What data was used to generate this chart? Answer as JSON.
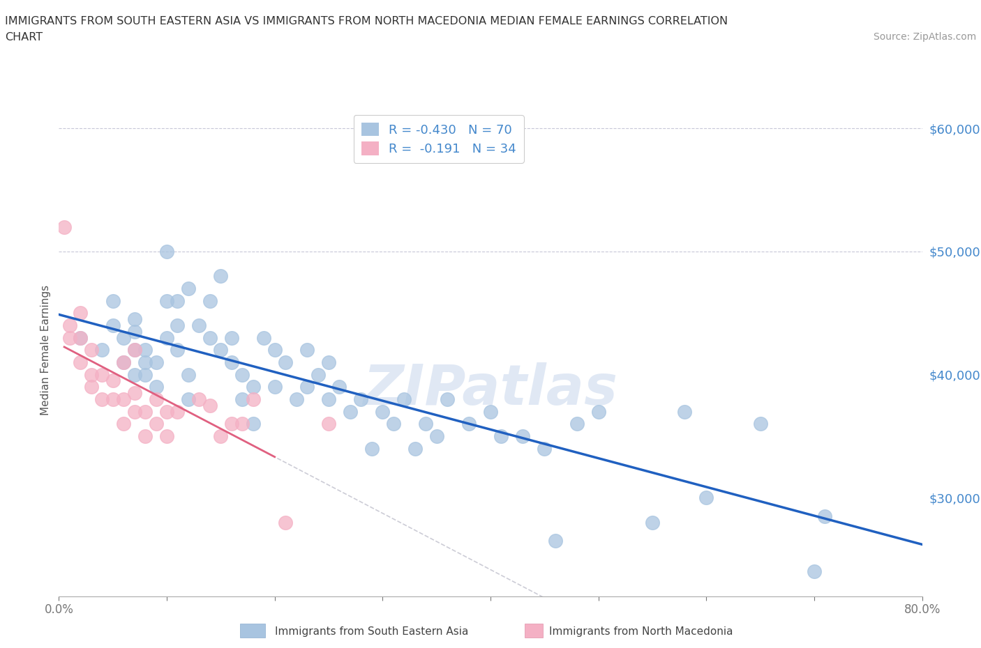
{
  "title_line1": "IMMIGRANTS FROM SOUTH EASTERN ASIA VS IMMIGRANTS FROM NORTH MACEDONIA MEDIAN FEMALE EARNINGS CORRELATION",
  "title_line2": "CHART",
  "source": "Source: ZipAtlas.com",
  "ylabel": "Median Female Earnings",
  "xlim": [
    0.0,
    0.8
  ],
  "ylim": [
    22000,
    62000
  ],
  "yticks": [
    30000,
    40000,
    50000,
    60000
  ],
  "ytick_labels": [
    "$30,000",
    "$40,000",
    "$50,000",
    "$60,000"
  ],
  "xticks": [
    0.0,
    0.1,
    0.2,
    0.3,
    0.4,
    0.5,
    0.6,
    0.7,
    0.8
  ],
  "xtick_labels": [
    "0.0%",
    "",
    "",
    "",
    "",
    "",
    "",
    "",
    "80.0%"
  ],
  "watermark": "ZIPatlas",
  "color_blue": "#a8c4e0",
  "color_pink": "#f4b0c4",
  "line_blue": "#2060c0",
  "line_pink": "#e06080",
  "line_gray": "#c0c0cc",
  "text_blue": "#4488cc",
  "background": "#ffffff",
  "blue_x": [
    0.02,
    0.04,
    0.05,
    0.05,
    0.06,
    0.06,
    0.07,
    0.07,
    0.07,
    0.07,
    0.08,
    0.08,
    0.08,
    0.09,
    0.09,
    0.1,
    0.1,
    0.1,
    0.11,
    0.11,
    0.11,
    0.12,
    0.12,
    0.12,
    0.13,
    0.14,
    0.14,
    0.15,
    0.15,
    0.16,
    0.16,
    0.17,
    0.17,
    0.18,
    0.18,
    0.19,
    0.2,
    0.2,
    0.21,
    0.22,
    0.23,
    0.23,
    0.24,
    0.25,
    0.25,
    0.26,
    0.27,
    0.28,
    0.29,
    0.3,
    0.31,
    0.32,
    0.33,
    0.34,
    0.35,
    0.36,
    0.38,
    0.4,
    0.41,
    0.43,
    0.45,
    0.46,
    0.48,
    0.5,
    0.55,
    0.58,
    0.6,
    0.65,
    0.7,
    0.71
  ],
  "blue_y": [
    43000,
    42000,
    44000,
    46000,
    41000,
    43000,
    40000,
    42000,
    43500,
    44500,
    40000,
    41000,
    42000,
    39000,
    41000,
    43000,
    50000,
    46000,
    42000,
    44000,
    46000,
    38000,
    40000,
    47000,
    44000,
    43000,
    46000,
    42000,
    48000,
    41000,
    43000,
    38000,
    40000,
    36000,
    39000,
    43000,
    39000,
    42000,
    41000,
    38000,
    39000,
    42000,
    40000,
    38000,
    41000,
    39000,
    37000,
    38000,
    34000,
    37000,
    36000,
    38000,
    34000,
    36000,
    35000,
    38000,
    36000,
    37000,
    35000,
    35000,
    34000,
    26500,
    36000,
    37000,
    28000,
    37000,
    30000,
    36000,
    24000,
    28500
  ],
  "pink_x": [
    0.005,
    0.01,
    0.01,
    0.02,
    0.02,
    0.02,
    0.03,
    0.03,
    0.03,
    0.04,
    0.04,
    0.05,
    0.05,
    0.06,
    0.06,
    0.06,
    0.07,
    0.07,
    0.07,
    0.08,
    0.08,
    0.09,
    0.09,
    0.1,
    0.1,
    0.11,
    0.13,
    0.14,
    0.15,
    0.16,
    0.17,
    0.18,
    0.21,
    0.25
  ],
  "pink_y": [
    52000,
    43000,
    44000,
    41000,
    43000,
    45000,
    39000,
    40000,
    42000,
    38000,
    40000,
    38000,
    39500,
    36000,
    38000,
    41000,
    37000,
    38500,
    42000,
    35000,
    37000,
    36000,
    38000,
    35000,
    37000,
    37000,
    38000,
    37500,
    35000,
    36000,
    36000,
    38000,
    28000,
    36000
  ]
}
